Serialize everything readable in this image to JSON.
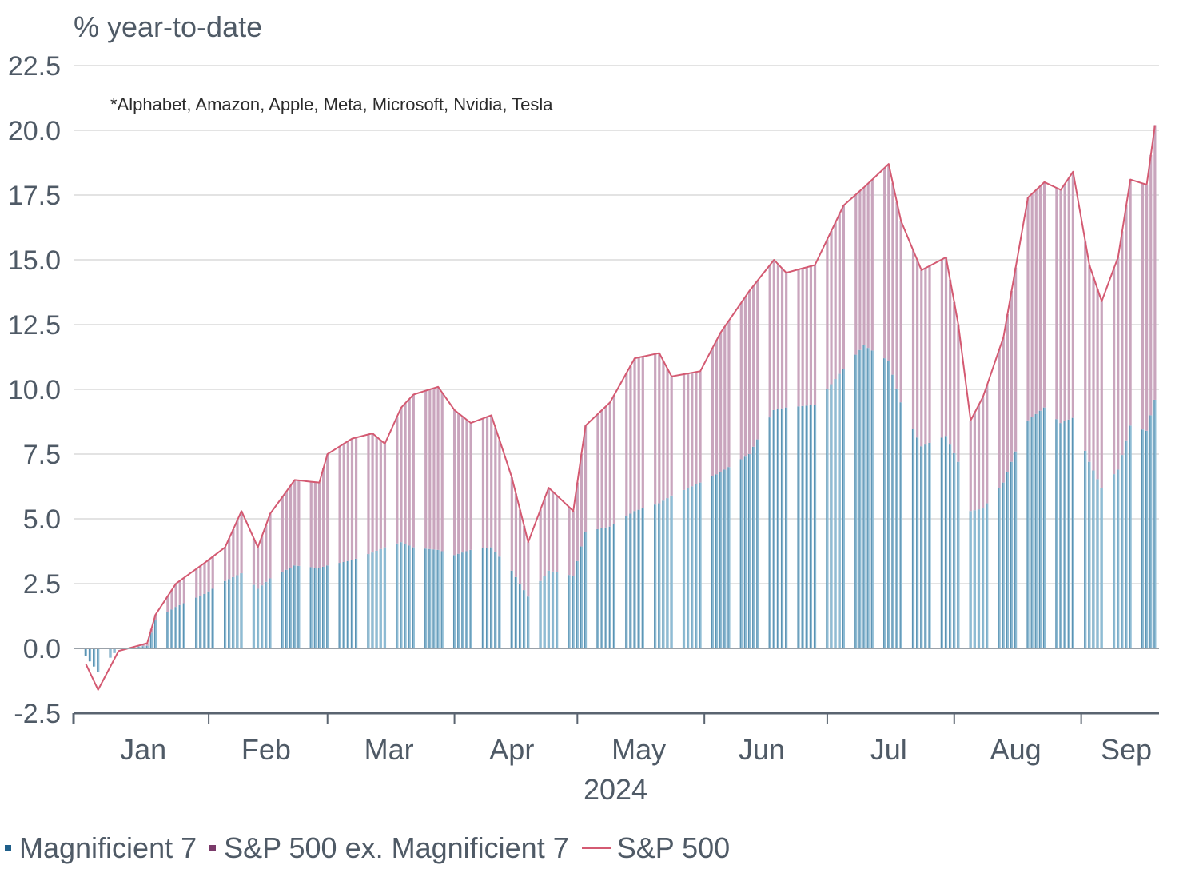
{
  "chart_data": {
    "type": "bar",
    "ylabel": "% year-to-date",
    "note": "*Alphabet, Amazon, Apple, Meta, Microsoft, Nvidia, Tesla",
    "ylim": [
      -2.5,
      22.5
    ],
    "yticks": [
      "22.5",
      "20.0",
      "17.5",
      "15.0",
      "12.5",
      "10.0",
      "7.5",
      "5.0",
      "2.5",
      "0.0",
      "-2.5"
    ],
    "categories": [
      "Jan",
      "Feb",
      "Mar",
      "Apr",
      "May",
      "Jun",
      "Jul",
      "Aug",
      "Sep"
    ],
    "year_label": "2024",
    "grid": true,
    "legend_position": "bottom",
    "colors": {
      "mag7": "#8fbcd4",
      "mag7_dark": "#2f6f96",
      "ex": "#c9a5bd",
      "sp500": "#d45a72"
    },
    "anchors": {
      "date": [
        "2024-01-02",
        "2024-01-05",
        "2024-01-10",
        "2024-01-17",
        "2024-01-19",
        "2024-01-24",
        "2024-01-31",
        "2024-02-05",
        "2024-02-09",
        "2024-02-13",
        "2024-02-16",
        "2024-02-22",
        "2024-02-28",
        "2024-03-01",
        "2024-03-07",
        "2024-03-12",
        "2024-03-15",
        "2024-03-19",
        "2024-03-22",
        "2024-03-28",
        "2024-04-01",
        "2024-04-05",
        "2024-04-10",
        "2024-04-15",
        "2024-04-19",
        "2024-04-24",
        "2024-04-30",
        "2024-05-03",
        "2024-05-09",
        "2024-05-15",
        "2024-05-21",
        "2024-05-24",
        "2024-05-31",
        "2024-06-05",
        "2024-06-12",
        "2024-06-18",
        "2024-06-21",
        "2024-06-28",
        "2024-07-05",
        "2024-07-10",
        "2024-07-16",
        "2024-07-19",
        "2024-07-24",
        "2024-07-30",
        "2024-08-02",
        "2024-08-05",
        "2024-08-08",
        "2024-08-13",
        "2024-08-19",
        "2024-08-23",
        "2024-08-27",
        "2024-08-30",
        "2024-09-03",
        "2024-09-06",
        "2024-09-10",
        "2024-09-13",
        "2024-09-17",
        "2024-09-19"
      ],
      "sp500": [
        -0.6,
        -1.6,
        -0.1,
        0.2,
        1.3,
        2.5,
        3.3,
        3.9,
        5.3,
        3.9,
        5.2,
        6.5,
        6.4,
        7.5,
        8.1,
        8.3,
        7.9,
        9.3,
        9.8,
        10.1,
        9.2,
        8.7,
        9.0,
        6.6,
        4.1,
        6.2,
        5.3,
        8.6,
        9.5,
        11.2,
        11.4,
        10.5,
        10.7,
        12.2,
        13.8,
        15.0,
        14.5,
        14.8,
        17.1,
        17.8,
        18.7,
        16.5,
        14.6,
        15.1,
        12.5,
        8.8,
        9.7,
        12.0,
        17.4,
        18.0,
        17.7,
        18.4,
        14.8,
        13.4,
        15.1,
        18.1,
        17.9,
        20.2
      ],
      "mag7": [
        -0.3,
        -0.9,
        0.0,
        0.1,
        1.1,
        1.6,
        2.1,
        2.6,
        2.9,
        2.3,
        2.7,
        3.2,
        3.1,
        3.2,
        3.4,
        3.7,
        3.9,
        4.1,
        3.9,
        3.8,
        3.6,
        3.8,
        3.9,
        3.0,
        2.0,
        3.0,
        2.8,
        4.5,
        4.7,
        5.3,
        5.6,
        5.9,
        6.4,
        6.8,
        7.5,
        9.2,
        9.3,
        9.4,
        10.8,
        11.7,
        11.1,
        9.5,
        7.8,
        8.2,
        7.2,
        5.3,
        5.4,
        6.4,
        8.8,
        9.3,
        8.7,
        8.9,
        7.2,
        6.2,
        6.9,
        8.6,
        8.4,
        9.6
      ]
    }
  },
  "legend": {
    "mag7": "Magnificient 7",
    "ex": "S&P 500 ex. Magnificient 7",
    "sp500": "S&P 500"
  }
}
